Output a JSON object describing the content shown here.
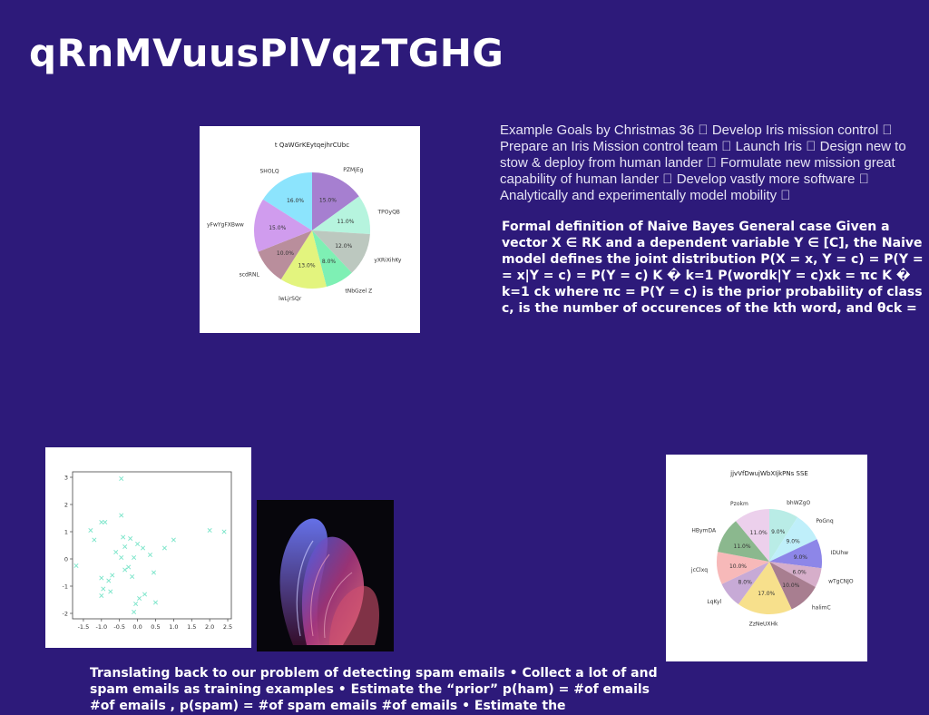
{
  "slide": {
    "title": "qRnMVuusPlVqzTGHG",
    "goals_text": "Example Goals by Christmas 36 \u0000 Develop Iris mission control \u0000 Prepare an Iris Mission control team \u0000 Launch Iris \u0000 Design new to stow & deploy from human lander \u0000 Formulate new mission great capability of human lander \u0000 Develop vastly more software \u0000 Analytically and experimentally model mobility \u0000",
    "naive_bayes_text": "Formal definition of Naive Bayes General case Given a vector X ∈ RK and a dependent variable Y ∈ [C], the Naive model defines the joint distribution P(X = x, Y = c) = P(Y = = x|Y = c) = P(Y = c) K � k=1 P(wordk|Y = c)xk = πc K � k=1 ck where πc = P(Y = c) is the prior probability of class c, is the number of occurences of the kth word, and θck =",
    "spam_text": "Translating back to our problem of detecting spam emails • Collect a lot of and spam emails as training examples • Estimate the “prior” p(ham) = #of emails #of emails , p(spam) = #of spam emails #of emails • Estimate the"
  },
  "chart_data": [
    {
      "type": "pie",
      "title": "t QaWGrKEytqejhrCUbc",
      "labels": [
        "PZMjEg",
        "TPOyQB",
        "yXRiXihKy",
        "tNbGzel Z",
        "lwLjrSQr",
        "scdRNL",
        "yFwYgFXBww",
        "SHOLQ"
      ],
      "values": [
        15.0,
        11.0,
        12.0,
        8.0,
        13.0,
        10.0,
        15.0,
        16.0
      ],
      "value_labels": [
        "15.0%",
        "11.0%",
        "12.0%",
        "8.0%",
        "13.0%",
        "10.0%",
        "15.0%",
        "16.0%"
      ],
      "colors": [
        "#a67fd0",
        "#b6f4de",
        "#bcc8bf",
        "#7ef0b4",
        "#e3f47e",
        "#b98e9c",
        "#d09cee",
        "#8ce4fd"
      ]
    },
    {
      "type": "scatter",
      "title": "",
      "xlim": [
        -1.8,
        2.6
      ],
      "ylim": [
        -2.2,
        3.2
      ],
      "xticks": [
        "-1.5",
        "-1.0",
        "-0.5",
        "0.0",
        "0.5",
        "1.0",
        "1.5",
        "2.0",
        "2.5"
      ],
      "yticks": [
        "-2",
        "-1",
        "0",
        "1",
        "2",
        "3"
      ],
      "marker_color": "#77e4c8",
      "x": [
        -0.45,
        -0.45,
        -1.3,
        -1.0,
        -0.9,
        -1.2,
        2.0,
        2.4,
        -0.4,
        -0.2,
        -0.35,
        0.0,
        0.15,
        -1.7,
        -0.6,
        -0.45,
        -0.1,
        -0.25,
        0.75,
        1.0,
        0.35,
        -0.7,
        -0.35,
        0.45,
        -0.15,
        -0.8,
        -1.0,
        -0.95,
        -0.75,
        0.2,
        0.05,
        -0.05,
        0.5,
        -1.0,
        -0.1
      ],
      "y": [
        2.95,
        1.6,
        1.05,
        1.35,
        1.35,
        0.7,
        1.05,
        1.0,
        0.8,
        0.75,
        0.45,
        0.55,
        0.4,
        -0.25,
        0.25,
        0.05,
        0.05,
        -0.3,
        0.4,
        0.7,
        0.15,
        -0.6,
        -0.4,
        -0.5,
        -0.65,
        -0.8,
        -0.7,
        -1.1,
        -1.2,
        -1.3,
        -1.45,
        -1.65,
        -1.6,
        -1.35,
        -1.95
      ]
    },
    {
      "type": "pie",
      "title": "jjvVfDwujWbXIjkPNs SSE",
      "labels": [
        "bhWZgO",
        "PoGnq",
        "IDUhw",
        "wTgCNJO",
        "halimC",
        "ZzNeUXHk",
        "LqKyl",
        "jcClxq",
        "HBymDA",
        "Pzokm"
      ],
      "values": [
        9.0,
        9.0,
        9.0,
        6.0,
        10.0,
        17.0,
        8.0,
        10.0,
        11.0,
        11.0
      ],
      "value_labels": [
        "9.0%",
        "9.0%",
        "9.0%",
        "6.0%",
        "10.0%",
        "17.0%",
        "8.0%",
        "10.0%",
        "11.0%",
        "11.0%"
      ],
      "colors": [
        "#b9ece6",
        "#bfeffa",
        "#8d86e8",
        "#d6aeca",
        "#a87e90",
        "#f7e08c",
        "#c7aad6",
        "#f7b9b9",
        "#8bb88e",
        "#ecd0ec"
      ]
    }
  ]
}
